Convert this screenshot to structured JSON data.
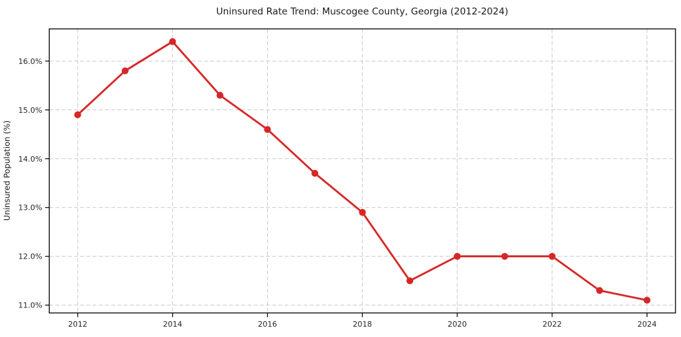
{
  "chart_data": {
    "type": "line",
    "title": "Uninsured Rate Trend: Muscogee County, Georgia (2012-2024)",
    "xlabel": "",
    "ylabel": "Uninsured Population (%)",
    "x": [
      2012,
      2013,
      2014,
      2015,
      2016,
      2017,
      2018,
      2019,
      2020,
      2021,
      2022,
      2023,
      2024
    ],
    "values": [
      14.9,
      15.8,
      16.4,
      15.3,
      14.6,
      13.7,
      12.9,
      11.5,
      12.0,
      12.0,
      12.0,
      11.3,
      11.1
    ],
    "x_tick_values": [
      2012,
      2014,
      2016,
      2018,
      2020,
      2022,
      2024
    ],
    "x_tick_labels": [
      "2012",
      "2014",
      "2016",
      "2018",
      "2020",
      "2022",
      "2024"
    ],
    "y_tick_values": [
      11,
      12,
      13,
      14,
      15,
      16
    ],
    "y_tick_labels": [
      "11.0%",
      "12.0%",
      "13.0%",
      "14.0%",
      "15.0%",
      "16.0%"
    ],
    "xlim": [
      2011.4,
      2024.6
    ],
    "ylim": [
      10.84,
      16.66
    ],
    "grid": true,
    "legend": false,
    "colors": {
      "line": "#d62728",
      "marker": "#d62728",
      "grid": "#c9c9c9",
      "axis": "#000000",
      "text": "#1a1a1a"
    }
  }
}
